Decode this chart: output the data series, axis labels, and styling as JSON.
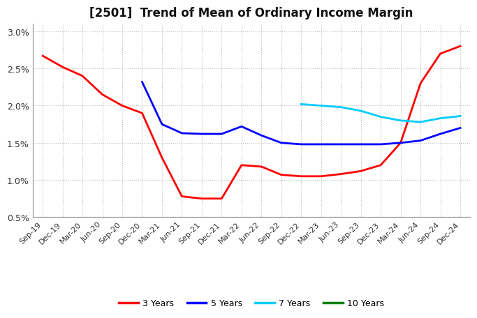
{
  "title": "[2501]  Trend of Mean of Ordinary Income Margin",
  "x_labels": [
    "Sep-19",
    "Dec-19",
    "Mar-20",
    "Jun-20",
    "Sep-20",
    "Dec-20",
    "Mar-21",
    "Jun-21",
    "Sep-21",
    "Dec-21",
    "Mar-22",
    "Jun-22",
    "Sep-22",
    "Dec-22",
    "Mar-23",
    "Jun-23",
    "Sep-23",
    "Dec-23",
    "Mar-24",
    "Jun-24",
    "Sep-24",
    "Dec-24"
  ],
  "ylim": [
    0.005,
    0.031
  ],
  "yticks": [
    0.005,
    0.01,
    0.015,
    0.02,
    0.025,
    0.03
  ],
  "ytick_labels": [
    "0.5%",
    "1.0%",
    "1.5%",
    "2.0%",
    "2.5%",
    "3.0%"
  ],
  "series": {
    "3 Years": {
      "color": "#FF0000",
      "data_x": [
        0,
        1,
        2,
        3,
        4,
        5,
        6,
        7,
        8,
        9,
        10,
        11,
        12,
        13,
        14,
        15,
        16,
        17,
        18,
        19,
        20,
        21
      ],
      "data_y": [
        0.0267,
        0.0252,
        0.024,
        0.0215,
        0.02,
        0.019,
        0.013,
        0.0078,
        0.0075,
        0.0075,
        0.012,
        0.0118,
        0.0107,
        0.0105,
        0.0105,
        0.0108,
        0.0112,
        0.012,
        0.015,
        0.023,
        0.027,
        0.028
      ]
    },
    "5 Years": {
      "color": "#0000FF",
      "data_x": [
        5,
        6,
        7,
        8,
        9,
        10,
        11,
        12,
        13,
        14,
        15,
        16,
        17,
        18,
        19,
        20,
        21
      ],
      "data_y": [
        0.0232,
        0.0175,
        0.0163,
        0.0162,
        0.0162,
        0.0172,
        0.016,
        0.015,
        0.0148,
        0.0148,
        0.0148,
        0.0148,
        0.0148,
        0.015,
        0.0153,
        0.0162,
        0.017
      ]
    },
    "7 Years": {
      "color": "#00CCFF",
      "data_x": [
        13,
        14,
        15,
        16,
        17,
        18,
        19,
        20,
        21
      ],
      "data_y": [
        0.0202,
        0.02,
        0.0198,
        0.0193,
        0.0185,
        0.018,
        0.0178,
        0.0183,
        0.0186
      ]
    },
    "10 Years": {
      "color": "#008000",
      "data_x": [],
      "data_y": []
    }
  },
  "legend_labels": [
    "3 Years",
    "5 Years",
    "7 Years",
    "10 Years"
  ],
  "legend_colors": [
    "#FF0000",
    "#0000FF",
    "#00CCFF",
    "#008000"
  ],
  "background_color": "#FFFFFF",
  "plot_bg_color": "#FFFFFF",
  "grid_color": "#BBBBBB",
  "title_fontsize": 12,
  "tick_fontsize": 8
}
